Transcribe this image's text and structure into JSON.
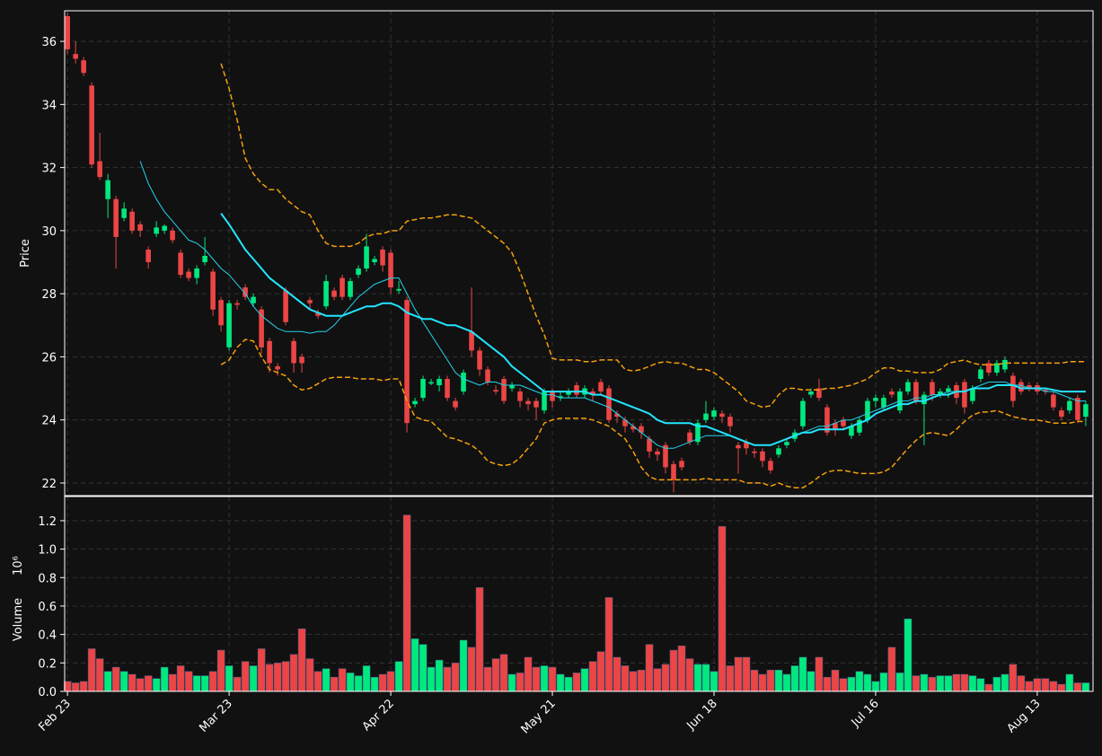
{
  "chart_data": {
    "type": "candlestick",
    "ylabel": "Price",
    "volume_label": "Volume",
    "volume_unit": "10⁶",
    "categories": [
      "Feb 23",
      null,
      null,
      null,
      null,
      null,
      null,
      null,
      null,
      null,
      null,
      null,
      null,
      null,
      null,
      null,
      null,
      null,
      null,
      null,
      "Mar 23",
      null,
      null,
      null,
      null,
      null,
      null,
      null,
      null,
      null,
      null,
      null,
      null,
      null,
      null,
      null,
      null,
      null,
      null,
      null,
      "Apr 22",
      null,
      null,
      null,
      null,
      null,
      null,
      null,
      null,
      null,
      null,
      null,
      null,
      null,
      null,
      null,
      null,
      null,
      null,
      null,
      "May 21",
      null,
      null,
      null,
      null,
      null,
      null,
      null,
      null,
      null,
      null,
      null,
      null,
      null,
      null,
      null,
      null,
      null,
      null,
      null,
      "Jun 18",
      null,
      null,
      null,
      null,
      null,
      null,
      null,
      null,
      null,
      null,
      null,
      null,
      null,
      null,
      null,
      null,
      null,
      null,
      null,
      "Jul 16",
      null,
      null,
      null,
      null,
      null,
      null,
      null,
      null,
      null,
      null,
      null,
      null,
      null,
      null,
      null,
      null,
      null,
      null,
      null,
      "Aug 13",
      null,
      null,
      null,
      null,
      null,
      null
    ],
    "open": [
      36.8,
      35.6,
      35.4,
      34.6,
      32.2,
      31.0,
      31.0,
      30.4,
      30.6,
      30.2,
      29.4,
      29.9,
      30.0,
      30.0,
      29.3,
      28.7,
      28.5,
      29.0,
      28.7,
      27.8,
      26.3,
      27.7,
      28.2,
      27.7,
      27.5,
      26.5,
      25.7,
      28.1,
      26.5,
      26.0,
      27.8,
      27.4,
      27.6,
      28.1,
      28.5,
      27.9,
      28.6,
      28.8,
      29.0,
      29.4,
      29.3,
      28.1,
      27.8,
      24.5,
      24.7,
      25.15,
      25.1,
      25.3,
      24.6,
      24.9,
      26.8,
      26.2,
      25.6,
      24.95,
      25.3,
      25.0,
      24.9,
      24.6,
      24.6,
      24.3,
      24.9,
      24.7,
      24.8,
      25.1,
      24.8,
      24.9,
      25.2,
      25.0,
      24.2,
      24.0,
      23.8,
      23.8,
      23.4,
      23.0,
      23.2,
      22.6,
      22.7,
      23.6,
      23.3,
      24.0,
      24.1,
      24.2,
      24.1,
      23.2,
      23.3,
      23.0,
      23.0,
      22.7,
      22.9,
      23.2,
      23.4,
      23.8,
      24.8,
      25.0,
      24.4,
      23.9,
      24.0,
      23.5,
      23.6,
      24.0,
      24.6,
      24.4,
      24.9,
      24.3,
      24.9,
      25.2,
      24.5,
      25.2,
      24.8,
      24.9,
      25.1,
      25.2,
      24.6,
      25.3,
      25.8,
      25.5,
      25.6,
      25.4,
      25.2,
      25.1,
      25.1,
      24.95,
      24.8,
      24.3,
      24.3,
      24.7,
      24.1
    ],
    "high": [
      36.9,
      36.0,
      35.5,
      34.7,
      33.1,
      31.8,
      31.1,
      30.9,
      30.7,
      30.3,
      29.5,
      30.3,
      30.2,
      30.1,
      29.4,
      28.8,
      28.9,
      29.8,
      28.8,
      27.9,
      27.8,
      27.8,
      28.3,
      28.0,
      27.6,
      26.6,
      25.8,
      28.2,
      26.6,
      26.1,
      27.9,
      27.5,
      28.6,
      28.2,
      28.6,
      28.5,
      28.9,
      29.9,
      29.2,
      29.5,
      29.4,
      28.4,
      27.9,
      24.7,
      25.4,
      25.3,
      25.4,
      25.4,
      24.7,
      25.6,
      28.2,
      26.3,
      25.7,
      25.1,
      25.4,
      25.2,
      25.0,
      24.7,
      24.7,
      25.0,
      25.0,
      24.9,
      25.0,
      25.2,
      25.1,
      25.0,
      25.3,
      25.1,
      24.3,
      24.1,
      23.9,
      23.9,
      23.5,
      23.1,
      23.3,
      22.7,
      22.8,
      23.7,
      24.0,
      24.6,
      24.4,
      24.3,
      24.2,
      23.3,
      23.4,
      23.1,
      23.1,
      22.8,
      23.2,
      23.4,
      23.7,
      24.7,
      25.0,
      25.3,
      24.5,
      24.0,
      24.1,
      23.9,
      24.1,
      24.7,
      24.8,
      24.8,
      25.0,
      25.0,
      25.3,
      25.3,
      24.9,
      25.3,
      25.0,
      25.1,
      25.2,
      25.3,
      25.1,
      25.7,
      25.9,
      25.9,
      26.0,
      25.5,
      25.3,
      25.2,
      25.2,
      25.0,
      24.9,
      24.4,
      24.7,
      24.8,
      24.6
    ],
    "low": [
      35.6,
      35.3,
      34.9,
      32.0,
      31.6,
      30.4,
      28.8,
      30.3,
      29.9,
      29.8,
      28.8,
      29.8,
      29.9,
      29.6,
      28.5,
      28.4,
      28.3,
      28.9,
      27.3,
      26.8,
      26.2,
      27.5,
      27.8,
      27.6,
      26.1,
      25.5,
      25.4,
      27.0,
      25.5,
      25.5,
      27.5,
      27.2,
      27.5,
      27.8,
      27.8,
      27.8,
      28.5,
      28.7,
      28.9,
      28.7,
      28.0,
      28.0,
      23.6,
      24.4,
      24.6,
      25.1,
      24.9,
      24.6,
      24.3,
      24.8,
      26.0,
      25.4,
      25.1,
      24.8,
      24.5,
      24.9,
      24.4,
      24.3,
      24.0,
      24.2,
      24.4,
      24.6,
      24.7,
      24.7,
      24.7,
      24.6,
      24.8,
      23.9,
      23.9,
      23.6,
      23.6,
      23.4,
      22.8,
      22.7,
      22.3,
      21.7,
      22.4,
      23.2,
      23.2,
      23.9,
      24.0,
      23.9,
      23.6,
      22.3,
      22.9,
      22.8,
      22.5,
      22.3,
      22.8,
      23.1,
      23.3,
      23.7,
      24.7,
      24.6,
      23.5,
      23.5,
      23.7,
      23.4,
      23.5,
      23.9,
      24.4,
      24.3,
      24.7,
      24.2,
      24.8,
      24.5,
      23.2,
      24.6,
      24.7,
      24.7,
      24.5,
      24.2,
      24.5,
      25.2,
      25.4,
      25.4,
      25.5,
      24.4,
      24.8,
      24.9,
      24.8,
      24.8,
      24.3,
      24.0,
      24.2,
      23.9,
      23.8
    ],
    "close": [
      35.75,
      35.45,
      35.0,
      32.1,
      31.7,
      31.6,
      29.8,
      30.7,
      30.0,
      30.0,
      29.0,
      30.1,
      30.15,
      29.7,
      28.6,
      28.5,
      28.8,
      29.2,
      27.5,
      27.0,
      27.7,
      27.65,
      27.9,
      27.9,
      26.3,
      25.8,
      25.6,
      27.1,
      25.8,
      25.8,
      27.7,
      27.3,
      28.4,
      27.9,
      27.9,
      28.4,
      28.8,
      29.5,
      29.1,
      28.9,
      28.2,
      28.15,
      23.9,
      24.6,
      25.3,
      25.2,
      25.3,
      24.7,
      24.4,
      25.5,
      26.2,
      25.6,
      25.2,
      24.9,
      24.6,
      25.1,
      24.6,
      24.5,
      24.4,
      24.9,
      24.6,
      24.75,
      24.9,
      24.8,
      25.0,
      24.8,
      24.9,
      24.0,
      24.1,
      23.8,
      23.7,
      23.6,
      23.0,
      22.9,
      22.5,
      22.1,
      22.5,
      23.3,
      23.9,
      24.2,
      24.3,
      24.1,
      23.8,
      23.1,
      23.1,
      22.95,
      22.7,
      22.4,
      23.1,
      23.3,
      23.6,
      24.6,
      24.9,
      24.7,
      23.6,
      23.7,
      23.8,
      23.8,
      24.0,
      24.6,
      24.7,
      24.7,
      24.8,
      24.9,
      25.2,
      24.6,
      24.8,
      24.8,
      24.9,
      25.0,
      24.7,
      24.4,
      25.0,
      25.6,
      25.5,
      25.8,
      25.9,
      24.6,
      24.9,
      25.0,
      24.9,
      24.9,
      24.4,
      24.1,
      24.6,
      24.0,
      24.5
    ],
    "volume": [
      0.07,
      0.06,
      0.07,
      0.3,
      0.23,
      0.14,
      0.17,
      0.14,
      0.12,
      0.09,
      0.11,
      0.09,
      0.17,
      0.12,
      0.18,
      0.14,
      0.11,
      0.11,
      0.14,
      0.29,
      0.18,
      0.1,
      0.21,
      0.18,
      0.3,
      0.19,
      0.2,
      0.21,
      0.26,
      0.44,
      0.23,
      0.14,
      0.16,
      0.1,
      0.16,
      0.13,
      0.11,
      0.18,
      0.1,
      0.12,
      0.14,
      0.21,
      1.24,
      0.37,
      0.33,
      0.17,
      0.22,
      0.17,
      0.2,
      0.36,
      0.31,
      0.73,
      0.17,
      0.23,
      0.26,
      0.12,
      0.13,
      0.24,
      0.17,
      0.18,
      0.17,
      0.12,
      0.1,
      0.13,
      0.16,
      0.21,
      0.28,
      0.66,
      0.24,
      0.18,
      0.14,
      0.15,
      0.33,
      0.16,
      0.19,
      0.29,
      0.32,
      0.23,
      0.19,
      0.19,
      0.14,
      1.16,
      0.18,
      0.24,
      0.24,
      0.15,
      0.12,
      0.15,
      0.15,
      0.12,
      0.18,
      0.24,
      0.14,
      0.24,
      0.1,
      0.15,
      0.09,
      0.1,
      0.14,
      0.12,
      0.07,
      0.13,
      0.31,
      0.13,
      0.51,
      0.11,
      0.12,
      0.1,
      0.11,
      0.11,
      0.12,
      0.12,
      0.11,
      0.09,
      0.05,
      0.1,
      0.12,
      0.19,
      0.11,
      0.07,
      0.09,
      0.09,
      0.07,
      0.05,
      0.12,
      0.06,
      0.06
    ],
    "up_color": "#00e97f",
    "down_color": "#ec4545",
    "overlays": [
      {
        "color": "#22d3ee",
        "width": 1,
        "style": "solid",
        "values": [
          null,
          null,
          null,
          null,
          null,
          null,
          null,
          null,
          null,
          32.2,
          31.5,
          31.0,
          30.6,
          30.3,
          30.0,
          29.7,
          29.6,
          29.4,
          29.1,
          28.8,
          28.6,
          28.3,
          28.0,
          27.6,
          27.3,
          27.1,
          26.9,
          26.8,
          26.8,
          26.8,
          26.75,
          26.8,
          26.8,
          27.0,
          27.3,
          27.6,
          27.9,
          28.1,
          28.3,
          28.4,
          28.5,
          28.5,
          28.0,
          27.5,
          27.1,
          26.7,
          26.3,
          25.9,
          25.5,
          25.3,
          25.2,
          25.1,
          25.2,
          25.2,
          25.1,
          25.1,
          25.1,
          25.0,
          24.9,
          24.8,
          24.8,
          24.7,
          24.7,
          24.7,
          24.7,
          24.6,
          24.5,
          24.4,
          24.2,
          24.0,
          23.8,
          23.6,
          23.4,
          23.2,
          23.1,
          23.1,
          23.2,
          23.3,
          23.4,
          23.5,
          23.5,
          23.5,
          23.5,
          23.4,
          23.3,
          23.2,
          23.2,
          23.2,
          23.3,
          23.4,
          23.5,
          23.6,
          23.7,
          23.8,
          23.8,
          23.9,
          24.0,
          24.0,
          24.1,
          24.2,
          24.3,
          24.4,
          24.5,
          24.6,
          24.6,
          24.7,
          24.7,
          24.8,
          24.8,
          24.9,
          24.9,
          24.9,
          25.0,
          25.1,
          25.2,
          25.2,
          25.2,
          25.1,
          25.1,
          25.0,
          25.0,
          24.9,
          24.9,
          24.8,
          24.7,
          24.6,
          24.6
        ]
      },
      {
        "color": "#22e5ff",
        "width": 2,
        "style": "solid",
        "values": [
          null,
          null,
          null,
          null,
          null,
          null,
          null,
          null,
          null,
          null,
          null,
          null,
          null,
          null,
          null,
          null,
          null,
          null,
          null,
          30.55,
          30.2,
          29.8,
          29.4,
          29.1,
          28.8,
          28.5,
          28.3,
          28.1,
          27.9,
          27.7,
          27.5,
          27.4,
          27.3,
          27.3,
          27.3,
          27.4,
          27.5,
          27.6,
          27.6,
          27.7,
          27.7,
          27.6,
          27.4,
          27.3,
          27.2,
          27.2,
          27.1,
          27.0,
          27.0,
          26.9,
          26.8,
          26.6,
          26.4,
          26.2,
          26.0,
          25.7,
          25.5,
          25.3,
          25.1,
          24.9,
          24.9,
          24.9,
          24.9,
          24.9,
          24.9,
          24.8,
          24.8,
          24.7,
          24.6,
          24.5,
          24.4,
          24.3,
          24.2,
          24.0,
          23.9,
          23.9,
          23.9,
          23.9,
          23.8,
          23.8,
          23.7,
          23.6,
          23.5,
          23.4,
          23.3,
          23.2,
          23.2,
          23.2,
          23.3,
          23.4,
          23.5,
          23.6,
          23.6,
          23.7,
          23.7,
          23.7,
          23.7,
          23.8,
          23.9,
          24.0,
          24.2,
          24.3,
          24.4,
          24.5,
          24.5,
          24.6,
          24.6,
          24.7,
          24.8,
          24.8,
          24.9,
          24.9,
          25.0,
          25.0,
          25.0,
          25.1,
          25.1,
          25.1,
          25.0,
          25.0,
          25.0,
          25.0,
          24.95,
          24.9,
          24.9,
          24.9,
          24.9
        ]
      },
      {
        "color": "#f5a00b",
        "width": 1.5,
        "style": "dashed",
        "values": [
          null,
          null,
          null,
          null,
          null,
          null,
          null,
          null,
          null,
          null,
          null,
          null,
          null,
          null,
          null,
          null,
          null,
          null,
          null,
          35.3,
          34.5,
          33.5,
          32.3,
          31.8,
          31.5,
          31.3,
          31.3,
          31.0,
          30.8,
          30.6,
          30.5,
          30.0,
          29.6,
          29.5,
          29.5,
          29.5,
          29.6,
          29.8,
          29.9,
          29.9,
          30.0,
          30.0,
          30.3,
          30.35,
          30.4,
          30.4,
          30.45,
          30.5,
          30.5,
          30.45,
          30.4,
          30.2,
          30.0,
          29.8,
          29.6,
          29.3,
          28.7,
          28.0,
          27.3,
          26.7,
          25.95,
          25.9,
          25.9,
          25.9,
          25.85,
          25.85,
          25.9,
          25.9,
          25.9,
          25.6,
          25.55,
          25.6,
          25.7,
          25.8,
          25.85,
          25.8,
          25.8,
          25.7,
          25.6,
          25.6,
          25.5,
          25.3,
          25.1,
          24.9,
          24.6,
          24.5,
          24.4,
          24.45,
          24.8,
          25.0,
          25.0,
          24.95,
          24.95,
          24.95,
          25.0,
          25.0,
          25.05,
          25.1,
          25.2,
          25.3,
          25.5,
          25.65,
          25.65,
          25.55,
          25.55,
          25.5,
          25.5,
          25.5,
          25.6,
          25.8,
          25.85,
          25.9,
          25.8,
          25.75,
          25.75,
          25.75,
          25.8,
          25.8,
          25.8,
          25.8,
          25.8,
          25.8,
          25.8,
          25.8,
          25.85,
          25.85,
          25.85
        ]
      },
      {
        "color": "#f5a00b",
        "width": 1.5,
        "style": "dashed",
        "values": [
          null,
          null,
          null,
          null,
          null,
          null,
          null,
          null,
          null,
          null,
          null,
          null,
          null,
          null,
          null,
          null,
          null,
          null,
          null,
          25.75,
          25.9,
          26.3,
          26.55,
          26.5,
          26.0,
          25.6,
          25.5,
          25.4,
          25.1,
          24.95,
          25.0,
          25.15,
          25.3,
          25.35,
          25.35,
          25.35,
          25.3,
          25.3,
          25.3,
          25.25,
          25.3,
          25.3,
          24.6,
          24.1,
          24.0,
          23.95,
          23.7,
          23.45,
          23.4,
          23.3,
          23.2,
          23.0,
          22.7,
          22.6,
          22.55,
          22.6,
          22.8,
          23.1,
          23.4,
          23.9,
          24.0,
          24.05,
          24.05,
          24.05,
          24.05,
          24.0,
          23.9,
          23.8,
          23.6,
          23.4,
          23.0,
          22.5,
          22.2,
          22.1,
          22.1,
          22.1,
          22.1,
          22.1,
          22.1,
          22.15,
          22.1,
          22.1,
          22.1,
          22.1,
          22.0,
          22.0,
          22.0,
          21.9,
          22.0,
          21.9,
          21.85,
          21.85,
          22.0,
          22.2,
          22.35,
          22.4,
          22.4,
          22.35,
          22.3,
          22.3,
          22.3,
          22.35,
          22.5,
          22.8,
          23.1,
          23.35,
          23.55,
          23.6,
          23.55,
          23.5,
          23.7,
          23.95,
          24.15,
          24.25,
          24.25,
          24.3,
          24.2,
          24.1,
          24.05,
          24.0,
          24.0,
          23.95,
          23.9,
          23.9,
          23.9,
          23.95,
          23.95
        ]
      }
    ],
    "ylim": [
      21.6,
      36.97
    ],
    "yticks": [
      22,
      24,
      26,
      28,
      30,
      32,
      34,
      36
    ],
    "volume_lim": [
      0,
      1.37
    ],
    "volume_ticks": [
      {
        "value": 0,
        "label": "0.0"
      },
      0.2,
      0.4,
      0.6,
      0.8,
      {
        "value": 1,
        "label": "1.0"
      },
      1.2
    ],
    "grid": true
  }
}
